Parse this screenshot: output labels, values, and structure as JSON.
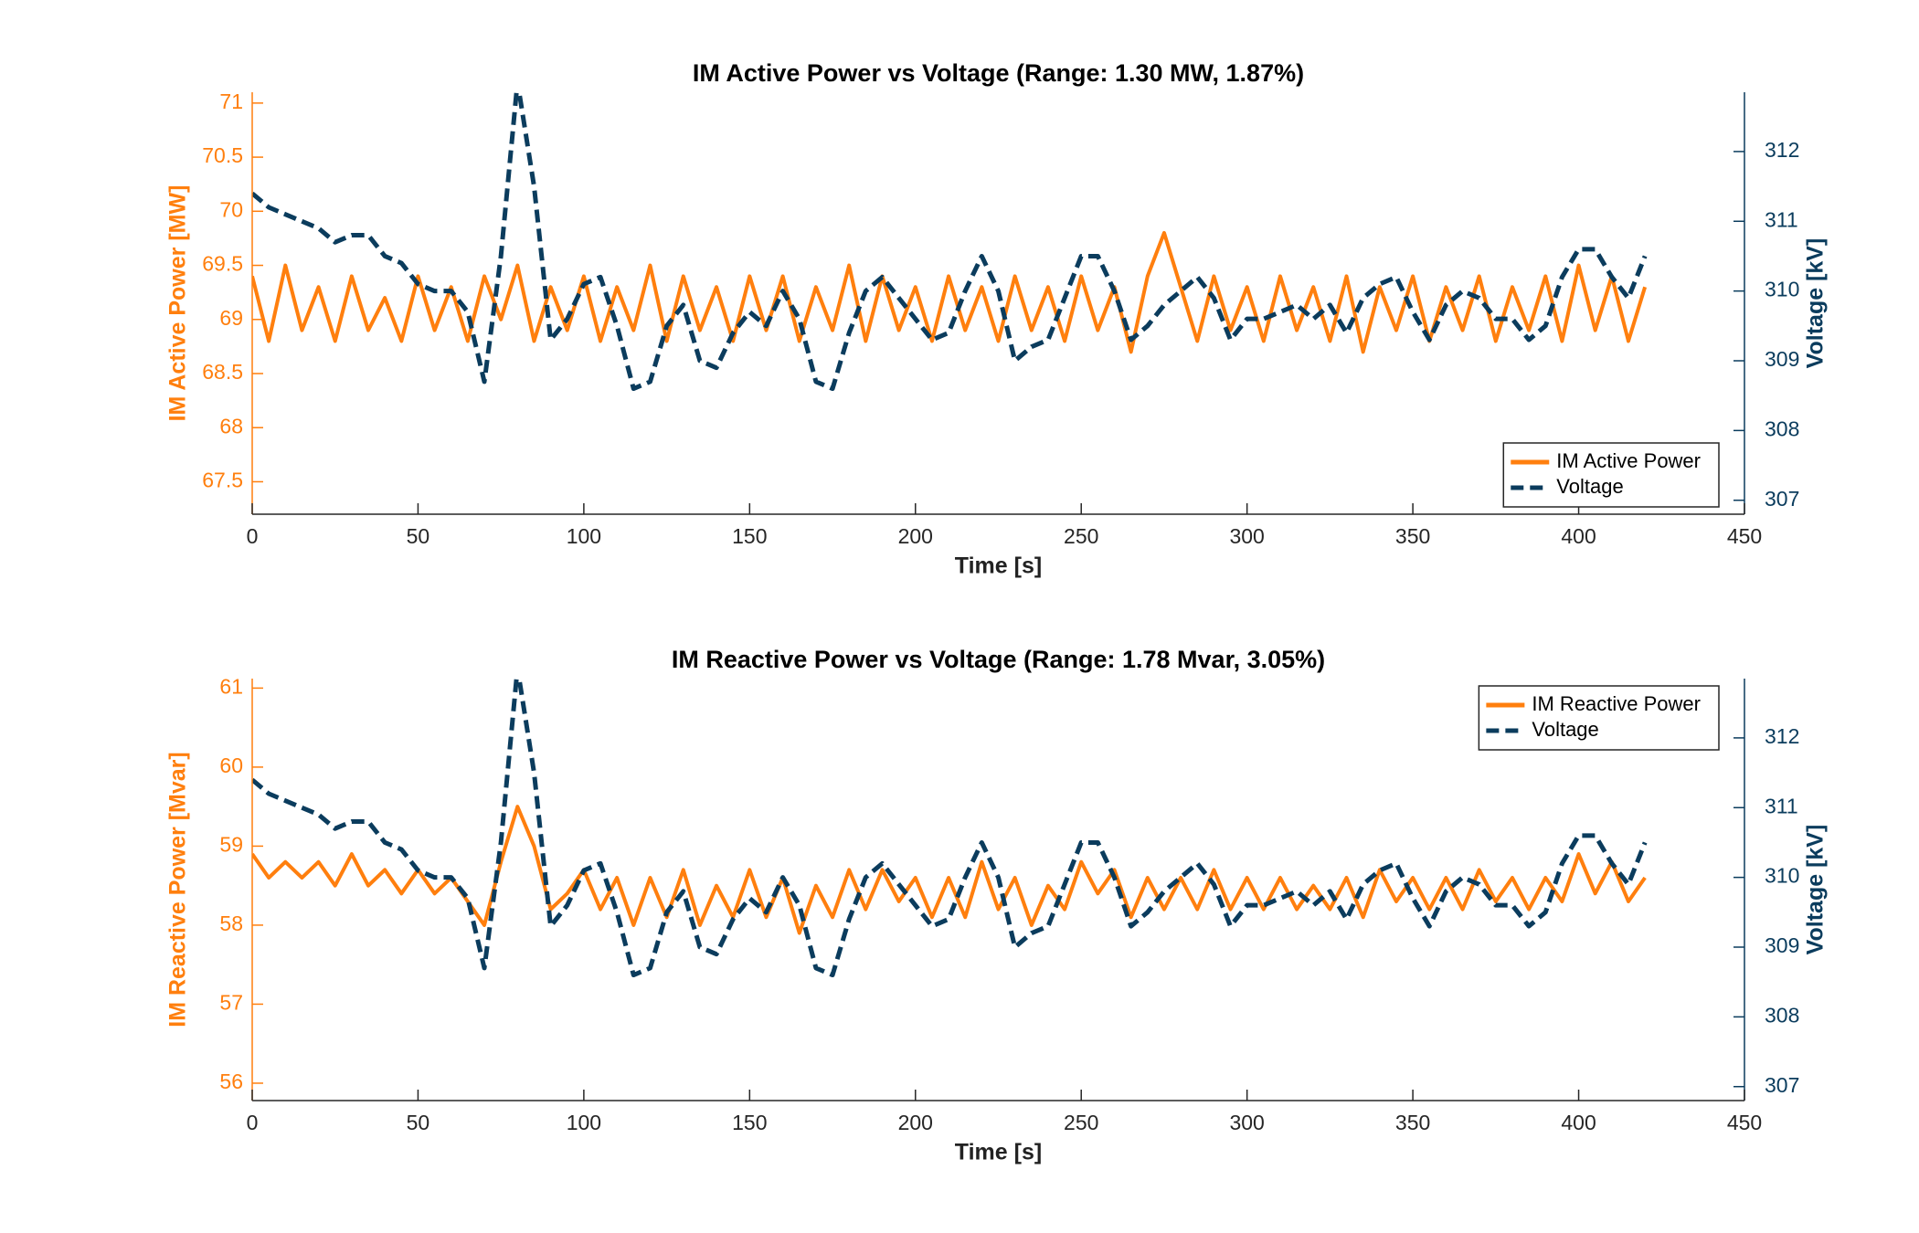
{
  "chart_data": [
    {
      "type": "line",
      "title": "IM Active Power vs Voltage (Range: 1.30 MW, 1.87%)",
      "xlabel": "Time [s]",
      "ylabel": "IM Active Power [MW]",
      "y2label": "Voltage [kV]",
      "x": [
        0,
        5,
        10,
        15,
        20,
        25,
        30,
        35,
        40,
        45,
        50,
        55,
        60,
        65,
        70,
        75,
        80,
        85,
        90,
        95,
        100,
        105,
        110,
        115,
        120,
        125,
        130,
        135,
        140,
        145,
        150,
        155,
        160,
        165,
        170,
        175,
        180,
        185,
        190,
        195,
        200,
        205,
        210,
        215,
        220,
        225,
        230,
        235,
        240,
        245,
        250,
        255,
        260,
        265,
        270,
        275,
        280,
        285,
        290,
        295,
        300,
        305,
        310,
        315,
        320,
        325,
        330,
        335,
        340,
        345,
        350,
        355,
        360,
        365,
        370,
        375,
        380,
        385,
        390,
        395,
        400,
        405,
        410,
        415,
        420
      ],
      "series": [
        {
          "name": "IM Active Power",
          "color": "#ff7f0e",
          "linestyle": "solid",
          "values": [
            69.4,
            68.8,
            69.5,
            68.9,
            69.3,
            68.8,
            69.4,
            68.9,
            69.2,
            68.8,
            69.4,
            68.9,
            69.3,
            68.8,
            69.4,
            69.0,
            69.5,
            68.8,
            69.3,
            68.9,
            69.4,
            68.8,
            69.3,
            68.9,
            69.5,
            68.8,
            69.4,
            68.9,
            69.3,
            68.8,
            69.4,
            68.9,
            69.4,
            68.8,
            69.3,
            68.9,
            69.5,
            68.8,
            69.4,
            68.9,
            69.3,
            68.8,
            69.4,
            68.9,
            69.3,
            68.8,
            69.4,
            68.9,
            69.3,
            68.8,
            69.4,
            68.9,
            69.3,
            68.7,
            69.4,
            69.8,
            69.3,
            68.8,
            69.4,
            68.9,
            69.3,
            68.8,
            69.4,
            68.9,
            69.3,
            68.8,
            69.4,
            68.7,
            69.3,
            68.9,
            69.4,
            68.8,
            69.3,
            68.9,
            69.4,
            68.8,
            69.3,
            68.9,
            69.4,
            68.8,
            69.5,
            68.9,
            69.4,
            68.8,
            69.3
          ]
        },
        {
          "name": "Voltage",
          "color": "#0b3c5d",
          "linestyle": "dashed",
          "axis": "y2",
          "values": [
            311.4,
            311.2,
            311.1,
            311.0,
            310.9,
            310.7,
            310.8,
            310.8,
            310.5,
            310.4,
            310.1,
            310.0,
            310.0,
            309.7,
            308.7,
            310.5,
            313.0,
            311.5,
            309.3,
            309.6,
            310.1,
            310.2,
            309.5,
            308.6,
            308.7,
            309.5,
            309.8,
            309.0,
            308.9,
            309.4,
            309.7,
            309.5,
            310.0,
            309.6,
            308.7,
            308.6,
            309.4,
            310.0,
            310.2,
            309.9,
            309.6,
            309.3,
            309.4,
            310.0,
            310.5,
            310.0,
            309.0,
            309.2,
            309.3,
            309.9,
            310.5,
            310.5,
            310.0,
            309.3,
            309.5,
            309.8,
            310.0,
            310.2,
            309.9,
            309.3,
            309.6,
            309.6,
            309.7,
            309.8,
            309.6,
            309.8,
            309.4,
            309.9,
            310.1,
            310.2,
            309.7,
            309.3,
            309.8,
            310.0,
            309.9,
            309.6,
            309.6,
            309.3,
            309.5,
            310.2,
            310.6,
            310.6,
            310.2,
            309.9,
            310.5
          ]
        }
      ],
      "xlim": [
        0,
        450
      ],
      "xticks": [
        0,
        50,
        100,
        150,
        200,
        250,
        300,
        350,
        400,
        450
      ],
      "ylim": [
        67.2,
        71.1
      ],
      "yticks": [
        67.5,
        68,
        68.5,
        69,
        69.5,
        70,
        70.5,
        71
      ],
      "y2lim": [
        306.8,
        312.85
      ],
      "y2ticks": [
        307,
        308,
        309,
        310,
        311,
        312
      ],
      "legend": "lower right"
    },
    {
      "type": "line",
      "title": "IM Reactive Power vs Voltage (Range: 1.78 Mvar, 3.05%)",
      "xlabel": "Time [s]",
      "ylabel": "IM Reactive Power [Mvar]",
      "y2label": "Voltage [kV]",
      "x": [
        0,
        5,
        10,
        15,
        20,
        25,
        30,
        35,
        40,
        45,
        50,
        55,
        60,
        65,
        70,
        75,
        80,
        85,
        90,
        95,
        100,
        105,
        110,
        115,
        120,
        125,
        130,
        135,
        140,
        145,
        150,
        155,
        160,
        165,
        170,
        175,
        180,
        185,
        190,
        195,
        200,
        205,
        210,
        215,
        220,
        225,
        230,
        235,
        240,
        245,
        250,
        255,
        260,
        265,
        270,
        275,
        280,
        285,
        290,
        295,
        300,
        305,
        310,
        315,
        320,
        325,
        330,
        335,
        340,
        345,
        350,
        355,
        360,
        365,
        370,
        375,
        380,
        385,
        390,
        395,
        400,
        405,
        410,
        415,
        420
      ],
      "series": [
        {
          "name": "IM Reactive Power",
          "color": "#ff7f0e",
          "linestyle": "solid",
          "values": [
            58.9,
            58.6,
            58.8,
            58.6,
            58.8,
            58.5,
            58.9,
            58.5,
            58.7,
            58.4,
            58.7,
            58.4,
            58.6,
            58.3,
            58.0,
            58.8,
            59.5,
            59.0,
            58.2,
            58.4,
            58.7,
            58.2,
            58.6,
            58.0,
            58.6,
            58.1,
            58.7,
            58.0,
            58.5,
            58.1,
            58.7,
            58.1,
            58.6,
            57.9,
            58.5,
            58.1,
            58.7,
            58.2,
            58.7,
            58.3,
            58.6,
            58.1,
            58.6,
            58.1,
            58.8,
            58.2,
            58.6,
            58.0,
            58.5,
            58.2,
            58.8,
            58.4,
            58.7,
            58.1,
            58.6,
            58.2,
            58.6,
            58.2,
            58.7,
            58.2,
            58.6,
            58.2,
            58.6,
            58.2,
            58.5,
            58.2,
            58.6,
            58.1,
            58.7,
            58.3,
            58.6,
            58.2,
            58.6,
            58.2,
            58.7,
            58.3,
            58.6,
            58.2,
            58.6,
            58.3,
            58.9,
            58.4,
            58.8,
            58.3,
            58.6
          ]
        },
        {
          "name": "Voltage",
          "color": "#0b3c5d",
          "linestyle": "dashed",
          "axis": "y2",
          "values": [
            311.4,
            311.2,
            311.1,
            311.0,
            310.9,
            310.7,
            310.8,
            310.8,
            310.5,
            310.4,
            310.1,
            310.0,
            310.0,
            309.7,
            308.7,
            310.5,
            313.0,
            311.5,
            309.3,
            309.6,
            310.1,
            310.2,
            309.5,
            308.6,
            308.7,
            309.5,
            309.8,
            309.0,
            308.9,
            309.4,
            309.7,
            309.5,
            310.0,
            309.6,
            308.7,
            308.6,
            309.4,
            310.0,
            310.2,
            309.9,
            309.6,
            309.3,
            309.4,
            310.0,
            310.5,
            310.0,
            309.0,
            309.2,
            309.3,
            309.9,
            310.5,
            310.5,
            310.0,
            309.3,
            309.5,
            309.8,
            310.0,
            310.2,
            309.9,
            309.3,
            309.6,
            309.6,
            309.7,
            309.8,
            309.6,
            309.8,
            309.4,
            309.9,
            310.1,
            310.2,
            309.7,
            309.3,
            309.8,
            310.0,
            309.9,
            309.6,
            309.6,
            309.3,
            309.5,
            310.2,
            310.6,
            310.6,
            310.2,
            309.9,
            310.5
          ]
        }
      ],
      "xlim": [
        0,
        450
      ],
      "xticks": [
        0,
        50,
        100,
        150,
        200,
        250,
        300,
        350,
        400,
        450
      ],
      "ylim": [
        55.78,
        61.12
      ],
      "yticks": [
        56,
        57,
        58,
        59,
        60,
        61
      ],
      "y2lim": [
        306.8,
        312.85
      ],
      "y2ticks": [
        307,
        308,
        309,
        310,
        311,
        312
      ],
      "legend": "upper right"
    }
  ]
}
